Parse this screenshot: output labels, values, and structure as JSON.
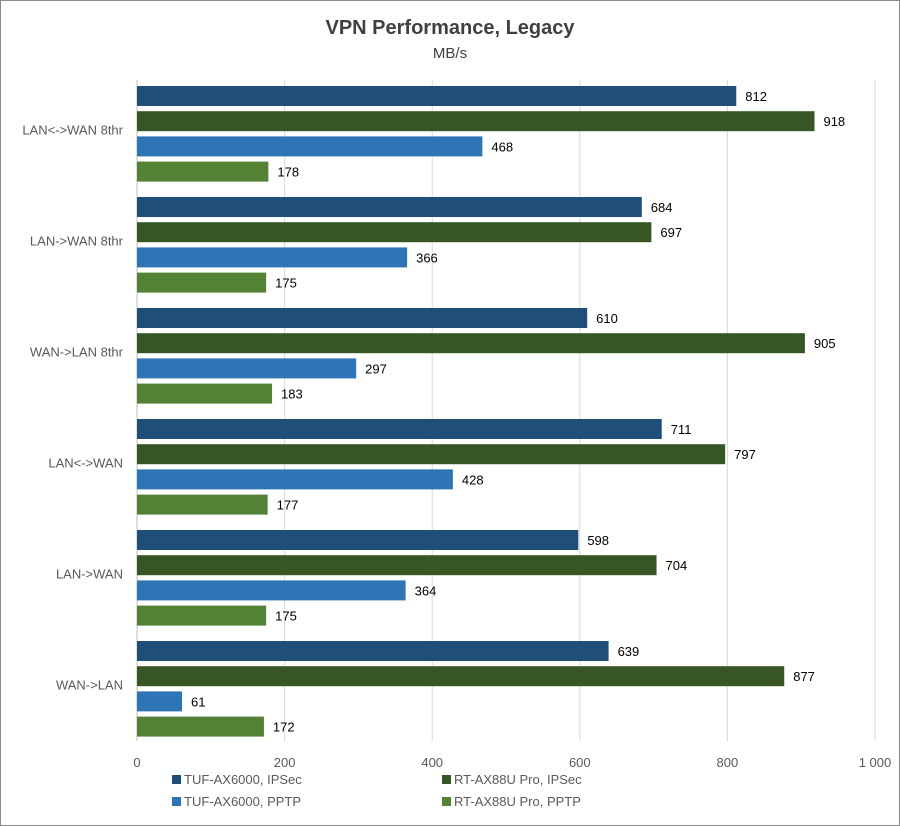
{
  "chart_data": {
    "type": "bar",
    "orientation": "horizontal",
    "title": "VPN Performance, Legacy",
    "subtitle": "MB/s",
    "categories": [
      "LAN<->WAN 8thr",
      "LAN->WAN 8thr",
      "WAN->LAN 8thr",
      "LAN<->WAN",
      "LAN->WAN",
      "WAN->LAN"
    ],
    "series": [
      {
        "name": "TUF-AX6000, IPSec",
        "color": "#1f4e79",
        "values": [
          812,
          684,
          610,
          711,
          598,
          639
        ]
      },
      {
        "name": "RT-AX88U Pro, IPSec",
        "color": "#375623",
        "values": [
          918,
          697,
          905,
          797,
          704,
          877
        ]
      },
      {
        "name": "TUF-AX6000, PPTP",
        "color": "#2e75b6",
        "values": [
          468,
          366,
          297,
          428,
          364,
          61
        ]
      },
      {
        "name": "RT-AX88U Pro, PPTP",
        "color": "#548235",
        "values": [
          178,
          175,
          183,
          177,
          175,
          172
        ]
      }
    ],
    "xlim": [
      0,
      1000
    ],
    "xticks": [
      0,
      200,
      400,
      600,
      800,
      1000
    ],
    "xtick_labels": [
      "0",
      "200",
      "400",
      "600",
      "800",
      "1 000"
    ],
    "grid": true,
    "legend": "bottom",
    "xlabel": "",
    "ylabel": ""
  }
}
